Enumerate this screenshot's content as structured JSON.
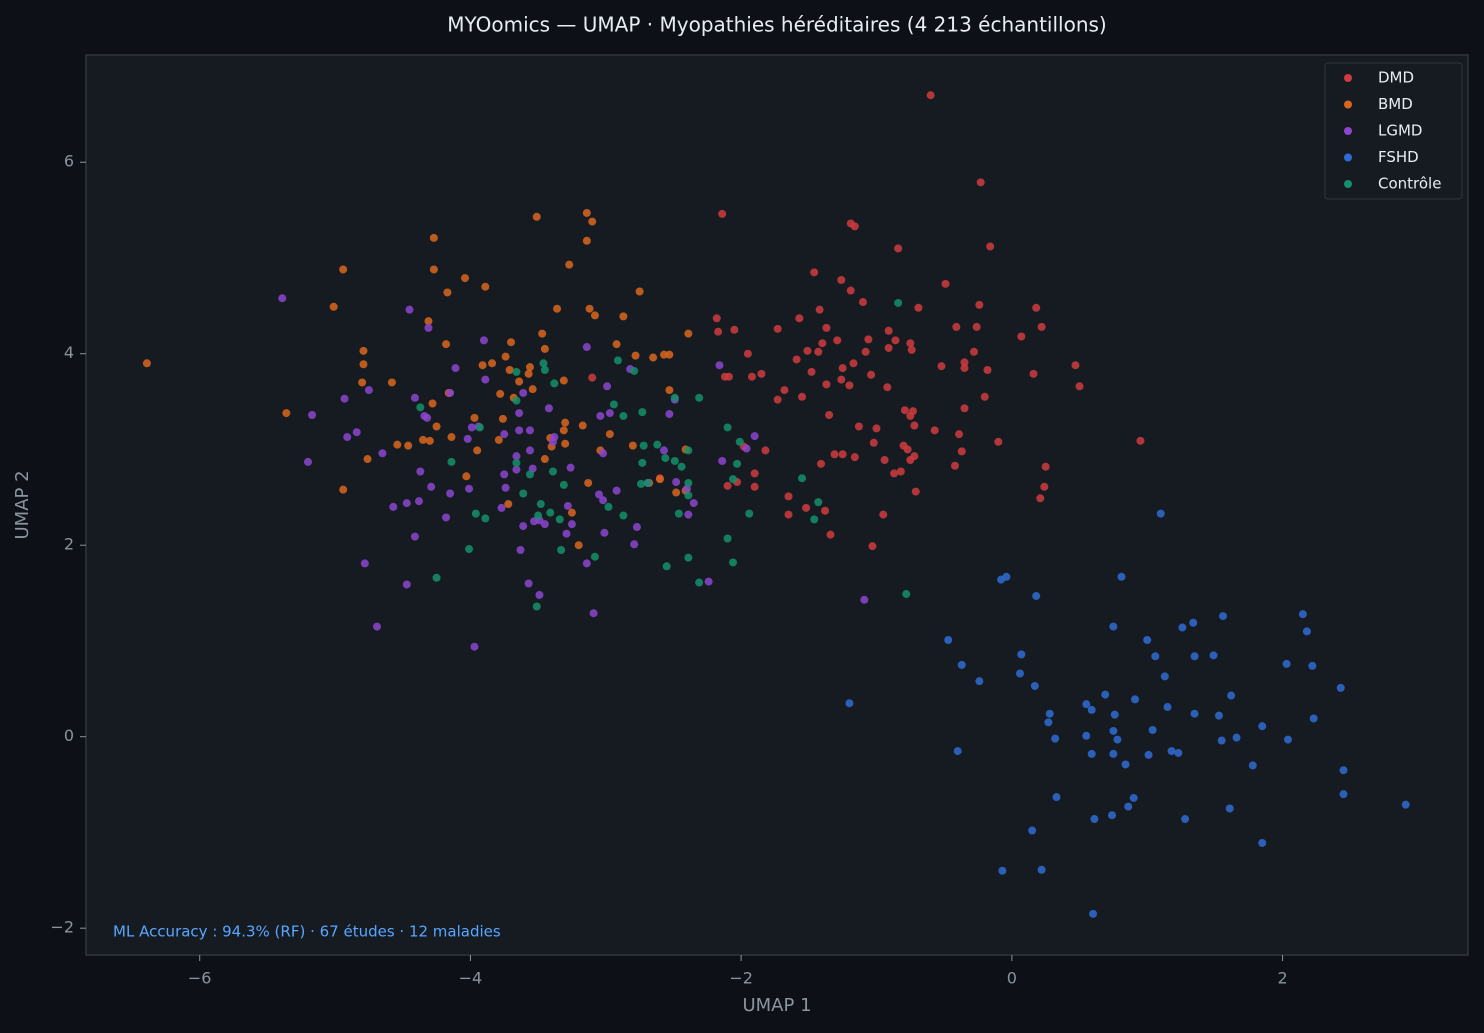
{
  "chart_data": {
    "type": "scatter",
    "title": "MYOomics — UMAP · Myopathies héréditaires (4 213 échantillons)",
    "x_label": "UMAP 1",
    "y_label": "UMAP 2",
    "annotation": "ML Accuracy : 94.3% (RF) · 67 études · 12 maladies",
    "xlim": [
      -6.84,
      3.37
    ],
    "ylim": [
      -2.28,
      7.12
    ],
    "xticks": [
      {
        "value": -6,
        "label": "−6"
      },
      {
        "value": -4,
        "label": "−4"
      },
      {
        "value": -2,
        "label": "−2"
      },
      0,
      2
    ],
    "yticks": [
      {
        "value": -2,
        "label": "−2"
      },
      0,
      2,
      4,
      6
    ],
    "grid": false,
    "legend": "upper-right",
    "series": [
      {
        "name": "DMD",
        "color": "#cf3b3e",
        "x": [
          -0.6,
          -0.23,
          -2.14,
          -0.16,
          -1.19,
          -1.16,
          -0.84,
          -1.46,
          -1.26,
          -0.49,
          -1.19,
          -1.1,
          -0.24,
          0.18,
          -0.69,
          -1.42,
          -1.57,
          -2.18,
          0.22,
          -0.41,
          -0.26,
          -1.73,
          -1.37,
          -2.05,
          -2.17,
          -0.91,
          0.07,
          -1.29,
          -1.06,
          -0.86,
          -0.75,
          -0.91,
          -1.4,
          -1.51,
          -1.95,
          -1.43,
          -0.28,
          -0.74,
          -1.08,
          0.47,
          -0.35,
          -0.52,
          -0.35,
          -1.59,
          -0.18,
          -1.17,
          -1.25,
          0.16,
          -1.85,
          -1.48,
          -1.04,
          -2.12,
          -1.92,
          -2.09,
          -1.26,
          0.5,
          -1.37,
          -1.2,
          -1.68,
          -0.92,
          -1.55,
          -0.2,
          -1.73,
          -0.35,
          -0.79,
          -0.73,
          -1.35,
          -0.75,
          -0.72,
          -1.13,
          -1.0,
          -0.57,
          -0.39,
          0.95,
          -0.1,
          -1.02,
          -0.8,
          -0.77,
          -0.37,
          -1.82,
          -1.98,
          -1.31,
          -1.25,
          -1.16,
          -0.72,
          -0.75,
          -0.94,
          -1.41,
          0.25,
          -0.42,
          -1.9,
          -0.87,
          -0.82,
          -2.6,
          -2.03,
          -2.1,
          -1.9,
          0.24,
          -0.71,
          -1.65,
          0.21,
          -1.52,
          -1.38,
          -1.65,
          -0.95,
          -1.34,
          -1.03,
          -3.1
        ],
        "y": [
          6.7,
          5.79,
          5.46,
          5.12,
          5.36,
          5.33,
          5.1,
          4.85,
          4.77,
          4.73,
          4.66,
          4.54,
          4.51,
          4.48,
          4.48,
          4.46,
          4.37,
          4.37,
          4.28,
          4.28,
          4.28,
          4.26,
          4.27,
          4.25,
          4.23,
          4.24,
          4.18,
          4.14,
          4.15,
          4.14,
          4.11,
          4.06,
          4.11,
          4.03,
          4.0,
          4.02,
          4.02,
          4.04,
          4.02,
          3.88,
          3.91,
          3.87,
          3.85,
          3.94,
          3.83,
          3.9,
          3.85,
          3.79,
          3.79,
          3.81,
          3.78,
          3.76,
          3.76,
          3.76,
          3.73,
          3.66,
          3.68,
          3.67,
          3.62,
          3.65,
          3.55,
          3.55,
          3.52,
          3.43,
          3.41,
          3.4,
          3.36,
          3.35,
          3.25,
          3.24,
          3.22,
          3.2,
          3.16,
          3.09,
          3.08,
          3.07,
          3.04,
          3.0,
          2.98,
          2.99,
          3.03,
          2.95,
          2.95,
          2.92,
          2.93,
          2.89,
          2.89,
          2.85,
          2.82,
          2.83,
          2.75,
          2.75,
          2.77,
          2.7,
          2.66,
          2.62,
          2.61,
          2.61,
          2.56,
          2.51,
          2.49,
          2.39,
          2.36,
          2.32,
          2.32,
          2.11,
          1.99,
          3.75
        ]
      },
      {
        "name": "BMD",
        "color": "#d9661c",
        "x": [
          -6.39,
          -3.14,
          -3.51,
          -3.1,
          -3.14,
          -4.27,
          -4.94,
          -3.27,
          -4.27,
          -4.04,
          -3.89,
          -4.17,
          -2.75,
          -5.01,
          -3.12,
          -3.36,
          -3.08,
          -2.87,
          -4.31,
          -2.39,
          -3.47,
          -4.18,
          -3.7,
          -2.92,
          -4.79,
          -3.45,
          -2.57,
          -2.53,
          -2.78,
          -2.65,
          -3.74,
          -3.84,
          -4.79,
          -3.91,
          -3.56,
          -3.71,
          -3.57,
          -3.31,
          -3.64,
          -4.8,
          -4.58,
          -2.53,
          -3.54,
          -4.16,
          -3.78,
          -3.68,
          -5.36,
          -4.28,
          -3.76,
          -3.97,
          -3.3,
          -4.25,
          -3.31,
          -3.17,
          -2.97,
          -3.41,
          -4.14,
          -4.3,
          -3.79,
          -4.35,
          -4.46,
          -4.54,
          -3.3,
          -2.8,
          -3.95,
          -3.04,
          -2.41,
          -3.4,
          -4.76,
          -3.45,
          -2.6,
          -4.03,
          -3.13,
          -2.68,
          -2.41,
          -4.94,
          -2.48,
          -3.72,
          -3.25,
          -3.2
        ],
        "y": [
          3.9,
          5.47,
          5.43,
          5.38,
          5.18,
          5.21,
          4.88,
          4.93,
          4.88,
          4.79,
          4.7,
          4.64,
          4.65,
          4.49,
          4.47,
          4.47,
          4.4,
          4.39,
          4.34,
          4.21,
          4.21,
          4.1,
          4.12,
          4.1,
          4.03,
          4.05,
          3.99,
          3.99,
          3.98,
          3.96,
          3.97,
          3.9,
          3.89,
          3.88,
          3.86,
          3.83,
          3.79,
          3.72,
          3.71,
          3.7,
          3.7,
          3.62,
          3.63,
          3.59,
          3.58,
          3.54,
          3.38,
          3.48,
          3.32,
          3.33,
          3.28,
          3.24,
          3.2,
          3.25,
          3.16,
          3.12,
          3.13,
          3.09,
          3.1,
          3.1,
          3.04,
          3.05,
          3.06,
          3.04,
          2.99,
          2.99,
          3.0,
          3.03,
          2.9,
          2.9,
          2.69,
          2.72,
          2.65,
          2.65,
          2.57,
          2.58,
          2.55,
          2.43,
          2.34,
          2.0
        ]
      },
      {
        "name": "LGMD",
        "color": "#8d45cf",
        "x": [
          -5.39,
          -4.45,
          -4.31,
          -3.9,
          -3.14,
          -4.11,
          -2.16,
          -2.82,
          -3.89,
          -2.99,
          -4.75,
          -4.15,
          -3.61,
          -4.93,
          -4.41,
          -2.49,
          -4.34,
          -3.42,
          -2.97,
          -2.53,
          -5.17,
          -3.04,
          -3.64,
          -4.32,
          -3.99,
          -3.94,
          -3.64,
          -3.56,
          -4.84,
          -3.75,
          -4.91,
          -4.02,
          -3.38,
          -1.9,
          -3.39,
          -2.57,
          -1.96,
          -4.65,
          -3.02,
          -3.56,
          -3.66,
          -5.2,
          -2.14,
          -3.26,
          -4.37,
          -3.66,
          -3.75,
          -3.54,
          -2.48,
          -2.69,
          -4.29,
          -2.4,
          -4.01,
          -3.74,
          -4.15,
          -3.05,
          -2.92,
          -3.02,
          -4.47,
          -4.38,
          -2.35,
          -4.57,
          -3.77,
          -3.28,
          -4.18,
          -2.39,
          -3.53,
          -3.49,
          -3.45,
          -3.61,
          -2.77,
          -3.25,
          -3.29,
          -3.01,
          -4.41,
          -2.79,
          -3.63,
          -4.78,
          -3.14,
          -4.47,
          -3.57,
          -2.24,
          -3.49,
          -1.09,
          -3.09,
          -4.69,
          -3.97
        ],
        "y": [
          4.58,
          4.46,
          4.27,
          4.14,
          4.07,
          3.85,
          3.88,
          3.84,
          3.73,
          3.66,
          3.62,
          3.59,
          3.59,
          3.53,
          3.54,
          3.52,
          3.35,
          3.43,
          3.38,
          3.37,
          3.36,
          3.35,
          3.38,
          3.33,
          3.23,
          3.24,
          3.2,
          3.2,
          3.18,
          3.16,
          3.13,
          3.11,
          3.13,
          3.14,
          3.08,
          2.99,
          3.01,
          2.96,
          2.96,
          2.99,
          2.93,
          2.87,
          2.88,
          2.81,
          2.77,
          2.79,
          2.74,
          2.8,
          2.66,
          2.65,
          2.61,
          2.59,
          2.59,
          2.6,
          2.54,
          2.53,
          2.57,
          2.47,
          2.44,
          2.46,
          2.44,
          2.4,
          2.39,
          2.41,
          2.29,
          2.32,
          2.25,
          2.26,
          2.22,
          2.2,
          2.19,
          2.22,
          2.12,
          2.13,
          2.09,
          2.01,
          1.95,
          1.81,
          1.81,
          1.59,
          1.6,
          1.62,
          1.48,
          1.43,
          1.29,
          1.15,
          0.94
        ]
      },
      {
        "name": "FSHD",
        "color": "#2f6bd2",
        "x": [
          1.1,
          -0.04,
          -0.08,
          0.81,
          0.18,
          2.15,
          1.56,
          2.18,
          1.34,
          1.26,
          0.75,
          -0.47,
          1.0,
          0.07,
          1.06,
          1.35,
          1.49,
          -0.37,
          2.03,
          2.22,
          0.06,
          1.13,
          -0.24,
          0.17,
          2.43,
          1.62,
          0.69,
          -1.2,
          0.91,
          0.55,
          1.15,
          0.59,
          0.28,
          1.35,
          0.76,
          1.53,
          2.23,
          0.27,
          1.85,
          1.04,
          0.75,
          0.55,
          0.32,
          0.78,
          1.55,
          1.66,
          2.04,
          -0.4,
          0.59,
          0.75,
          1.18,
          1.23,
          1.01,
          0.84,
          1.78,
          2.45,
          0.33,
          0.9,
          2.45,
          2.91,
          0.86,
          1.61,
          0.61,
          0.74,
          1.28,
          0.15,
          1.85,
          -0.07,
          0.22,
          0.6
        ],
        "y": [
          2.33,
          1.67,
          1.64,
          1.67,
          1.47,
          1.28,
          1.26,
          1.1,
          1.19,
          1.14,
          1.15,
          1.01,
          1.01,
          0.86,
          0.84,
          0.84,
          0.85,
          0.75,
          0.76,
          0.74,
          0.66,
          0.63,
          0.58,
          0.53,
          0.51,
          0.43,
          0.44,
          0.35,
          0.39,
          0.34,
          0.31,
          0.28,
          0.24,
          0.24,
          0.23,
          0.22,
          0.19,
          0.15,
          0.11,
          0.07,
          0.06,
          0.01,
          -0.02,
          -0.03,
          -0.04,
          -0.01,
          -0.03,
          -0.15,
          -0.18,
          -0.18,
          -0.15,
          -0.17,
          -0.19,
          -0.29,
          -0.3,
          -0.35,
          -0.63,
          -0.64,
          -0.6,
          -0.71,
          -0.73,
          -0.75,
          -0.86,
          -0.82,
          -0.86,
          -0.98,
          -1.11,
          -1.4,
          -1.39,
          -1.85
        ]
      },
      {
        "name": "Contrôle",
        "color": "#14916a",
        "x": [
          -0.84,
          -2.91,
          -3.46,
          -2.79,
          -3.45,
          -3.66,
          -3.38,
          -2.94,
          -2.31,
          -2.49,
          -3.66,
          -4.37,
          -2.73,
          -2.87,
          -3.93,
          -2.1,
          -2.01,
          -2.72,
          -2.62,
          -2.39,
          -2.56,
          -2.49,
          -2.73,
          -4.14,
          -3.66,
          -2.03,
          -2.44,
          -3.39,
          -3.56,
          -1.55,
          -2.06,
          -2.69,
          -2.74,
          -2.39,
          -3.31,
          -3.61,
          -2.39,
          -1.43,
          -3.48,
          -2.98,
          -3.41,
          -3.96,
          -2.46,
          -1.94,
          -2.87,
          -3.5,
          -3.89,
          -1.46,
          -3.34,
          -2.1,
          -4.01,
          -3.33,
          -3.08,
          -2.39,
          -2.06,
          -2.55,
          -4.25,
          -2.31,
          -0.78,
          -3.51
        ],
        "y": [
          4.53,
          3.93,
          3.9,
          3.82,
          3.83,
          3.81,
          3.69,
          3.47,
          3.54,
          3.54,
          3.51,
          3.44,
          3.39,
          3.35,
          3.23,
          3.23,
          3.08,
          3.04,
          3.05,
          2.99,
          2.91,
          2.88,
          2.86,
          2.87,
          2.86,
          2.85,
          2.82,
          2.77,
          2.74,
          2.7,
          2.69,
          2.65,
          2.64,
          2.65,
          2.63,
          2.54,
          2.52,
          2.45,
          2.43,
          2.4,
          2.34,
          2.33,
          2.33,
          2.33,
          2.31,
          2.31,
          2.28,
          2.27,
          2.27,
          2.07,
          1.96,
          1.95,
          1.88,
          1.87,
          1.82,
          1.78,
          1.66,
          1.61,
          1.49,
          1.36
        ]
      }
    ]
  }
}
